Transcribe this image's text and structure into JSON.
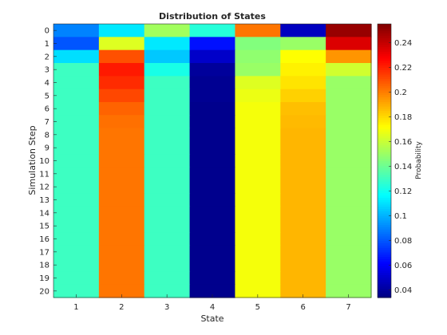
{
  "chart_data": {
    "type": "heatmap",
    "title": "Distribution of States",
    "xlabel": "State",
    "ylabel": "Simulation Step",
    "x": [
      1,
      2,
      3,
      4,
      5,
      6,
      7
    ],
    "y": [
      0,
      1,
      2,
      3,
      4,
      5,
      6,
      7,
      8,
      9,
      10,
      11,
      12,
      13,
      14,
      15,
      16,
      17,
      18,
      19,
      20
    ],
    "values": [
      [
        0.09,
        0.112,
        0.152,
        0.125,
        0.202,
        0.048,
        0.25
      ],
      [
        0.08,
        0.165,
        0.112,
        0.065,
        0.145,
        0.15,
        0.235
      ],
      [
        0.11,
        0.21,
        0.105,
        0.05,
        0.148,
        0.172,
        0.195
      ],
      [
        0.13,
        0.222,
        0.122,
        0.04,
        0.15,
        0.175,
        0.162
      ],
      [
        0.13,
        0.218,
        0.13,
        0.038,
        0.165,
        0.178,
        0.15
      ],
      [
        0.13,
        0.212,
        0.13,
        0.038,
        0.168,
        0.182,
        0.15
      ],
      [
        0.13,
        0.206,
        0.13,
        0.037,
        0.17,
        0.186,
        0.15
      ],
      [
        0.13,
        0.203,
        0.13,
        0.037,
        0.17,
        0.187,
        0.15
      ],
      [
        0.13,
        0.202,
        0.13,
        0.037,
        0.17,
        0.188,
        0.15
      ],
      [
        0.13,
        0.202,
        0.13,
        0.037,
        0.17,
        0.188,
        0.15
      ],
      [
        0.13,
        0.202,
        0.13,
        0.037,
        0.17,
        0.188,
        0.15
      ],
      [
        0.13,
        0.202,
        0.13,
        0.037,
        0.17,
        0.188,
        0.15
      ],
      [
        0.13,
        0.202,
        0.13,
        0.037,
        0.17,
        0.188,
        0.15
      ],
      [
        0.13,
        0.202,
        0.13,
        0.037,
        0.17,
        0.188,
        0.15
      ],
      [
        0.13,
        0.202,
        0.13,
        0.037,
        0.17,
        0.188,
        0.15
      ],
      [
        0.13,
        0.202,
        0.13,
        0.037,
        0.17,
        0.188,
        0.15
      ],
      [
        0.13,
        0.202,
        0.13,
        0.037,
        0.17,
        0.188,
        0.15
      ],
      [
        0.13,
        0.202,
        0.13,
        0.037,
        0.17,
        0.188,
        0.15
      ],
      [
        0.13,
        0.202,
        0.13,
        0.037,
        0.17,
        0.188,
        0.15
      ],
      [
        0.13,
        0.202,
        0.13,
        0.037,
        0.17,
        0.188,
        0.15
      ],
      [
        0.13,
        0.202,
        0.13,
        0.037,
        0.17,
        0.188,
        0.15
      ]
    ],
    "colormap": "jet",
    "clim": [
      0.034,
      0.255
    ],
    "colorbar": {
      "label": "Probability",
      "ticks": [
        0.04,
        0.06,
        0.08,
        0.1,
        0.12,
        0.14,
        0.16,
        0.18,
        0.2,
        0.22,
        0.24
      ],
      "tick_labels": [
        "0.04",
        "0.06",
        "0.08",
        "0.1",
        "0.12",
        "0.14",
        "0.16",
        "0.18",
        "0.2",
        "0.22",
        "0.24"
      ],
      "placement": "right"
    },
    "y_direction": "reverse",
    "grid": false
  }
}
